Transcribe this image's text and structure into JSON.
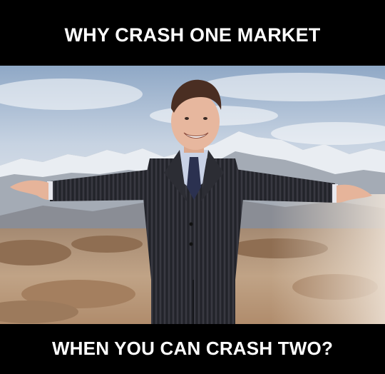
{
  "meme": {
    "top_text": "WHY CRASH ONE MARKET",
    "bottom_text": "WHEN YOU CAN CRASH TWO?"
  },
  "colors": {
    "background": "#000000",
    "caption_text": "#ffffff",
    "sky": "#b9c8dc",
    "mountains": "#9aa3ad",
    "desert": "#b79a7c",
    "suit": "#2a2a30"
  }
}
